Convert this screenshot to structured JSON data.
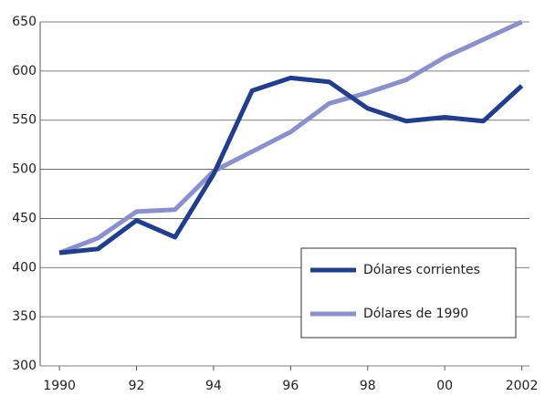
{
  "chart_data": {
    "type": "line",
    "x": [
      1990,
      1991,
      1992,
      1993,
      1994,
      1995,
      1996,
      1997,
      1998,
      1999,
      2000,
      2001,
      2002
    ],
    "series": [
      {
        "name": "Dólares corrientes",
        "color": "#1f3e8f",
        "values": [
          415,
          419,
          448,
          431,
          495,
          580,
          593,
          589,
          562,
          549,
          553,
          549,
          585
        ]
      },
      {
        "name": "Dólares de 1990",
        "color": "#8a8fcf",
        "values": [
          415,
          430,
          457,
          459,
          498,
          518,
          538,
          567,
          578,
          591,
          614,
          632,
          650
        ]
      }
    ],
    "xlim": [
      1989.5,
      2002.2
    ],
    "xticks": [
      1990,
      {
        "value": 1992,
        "label": "92"
      },
      {
        "value": 1994,
        "label": "94"
      },
      {
        "value": 1996,
        "label": "96"
      },
      {
        "value": 1998,
        "label": "98"
      },
      {
        "value": 2000,
        "label": "00"
      },
      2002
    ],
    "ylim": [
      300,
      650
    ],
    "yticks": [
      300,
      350,
      400,
      450,
      500,
      550,
      600,
      650
    ],
    "grid": true
  }
}
